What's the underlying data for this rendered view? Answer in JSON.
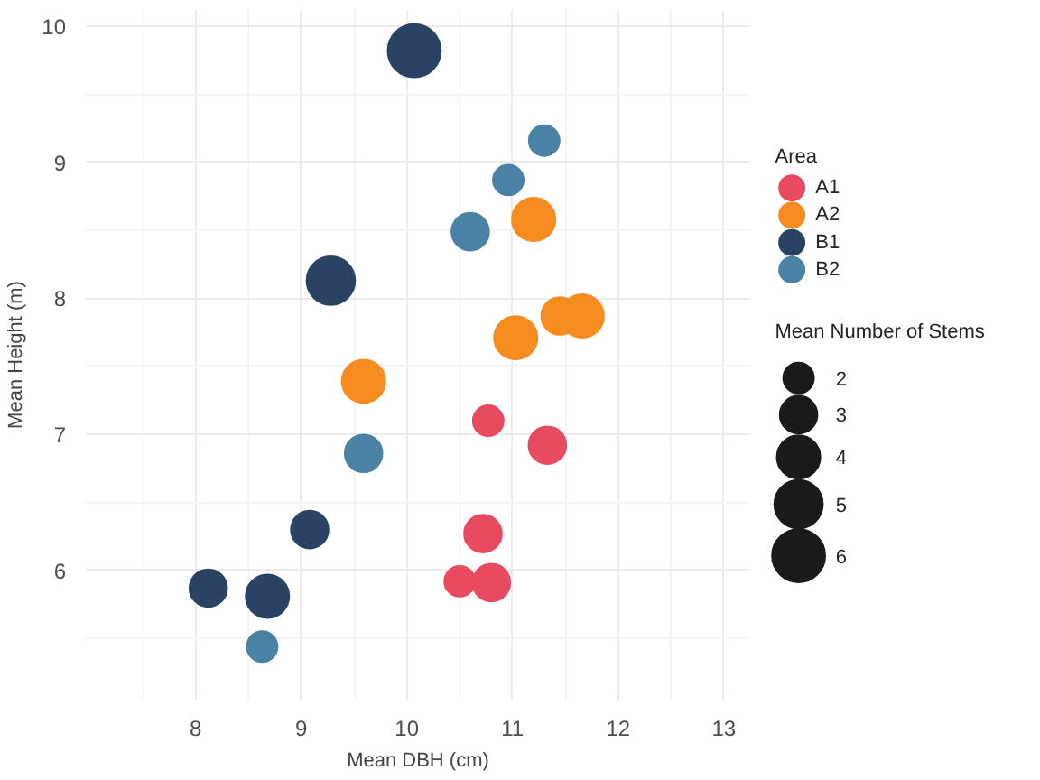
{
  "chart_data": {
    "type": "bubble",
    "xlabel": "Mean DBH (cm)",
    "ylabel": "Mean Height (m)",
    "legend_title": "Area",
    "legend": "right",
    "annotations": [
      "Mean Number of Stems"
    ],
    "size_legend": [
      2,
      3,
      4,
      5,
      6
    ],
    "xlim": [
      6.96,
      13.25
    ],
    "ylim": [
      5.05,
      10.12
    ],
    "xticks": [
      8,
      9,
      10,
      11,
      12,
      13
    ],
    "yticks": [
      6,
      7,
      8,
      9,
      10
    ],
    "grid": true,
    "series": [
      {
        "name": "A1",
        "color": "#e84a5f",
        "x": [
          10.77,
          11.33,
          10.72,
          10.5,
          10.8
        ],
        "values": [
          7.1,
          6.92,
          6.27,
          5.92,
          5.91
        ],
        "sizes": [
          2,
          3,
          3,
          2,
          3
        ]
      },
      {
        "name": "A2",
        "color": "#f68b1f",
        "x": [
          11.2,
          11.45,
          11.66,
          11.03,
          9.59
        ],
        "values": [
          8.58,
          7.87,
          7.87,
          7.71,
          7.39
        ],
        "sizes": [
          4,
          3,
          4,
          4,
          4
        ]
      },
      {
        "name": "B1",
        "color": "#2a4365",
        "x": [
          10.07,
          9.28,
          9.08,
          8.12,
          8.68
        ],
        "values": [
          9.82,
          8.13,
          6.3,
          5.87,
          5.81
        ],
        "sizes": [
          6,
          5,
          3,
          3,
          4
        ]
      },
      {
        "name": "B2",
        "color": "#4a82a6",
        "x": [
          11.3,
          10.96,
          10.6,
          9.59,
          8.63
        ],
        "values": [
          9.16,
          8.87,
          8.49,
          6.86,
          5.44
        ],
        "sizes": [
          2,
          2,
          3,
          3,
          2
        ]
      }
    ]
  }
}
